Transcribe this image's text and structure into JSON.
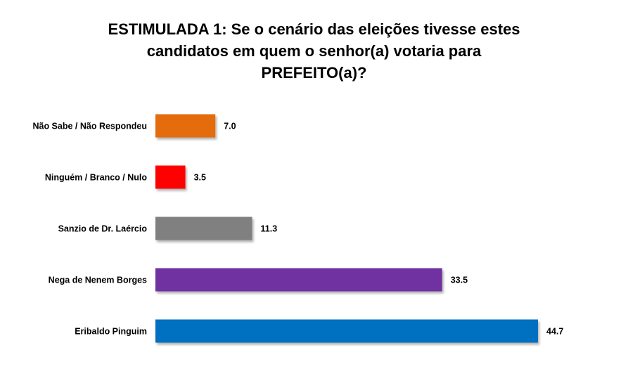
{
  "chart_data": {
    "type": "bar",
    "orientation": "horizontal",
    "title_lines": [
      "ESTIMULADA 1: Se o cenário das eleições tivesse estes",
      "candidatos em quem o senhor(a) votaria para",
      "PREFEITO(a)?"
    ],
    "categories": [
      "Não Sabe / Não Respondeu",
      "Ninguém / Branco / Nulo",
      "Sanzio de Dr. Laércio",
      "Nega de Nenem Borges",
      "Eribaldo Pinguim"
    ],
    "values": [
      7.0,
      3.5,
      11.3,
      33.5,
      44.7
    ],
    "value_labels": [
      "7.0",
      "3.5",
      "11.3",
      "33.5",
      "44.7"
    ],
    "colors": [
      "#E46C0A",
      "#FF0000",
      "#808080",
      "#7030A0",
      "#0070C0"
    ],
    "xlim": [
      0,
      44.7
    ],
    "grid": false,
    "legend": "none"
  }
}
